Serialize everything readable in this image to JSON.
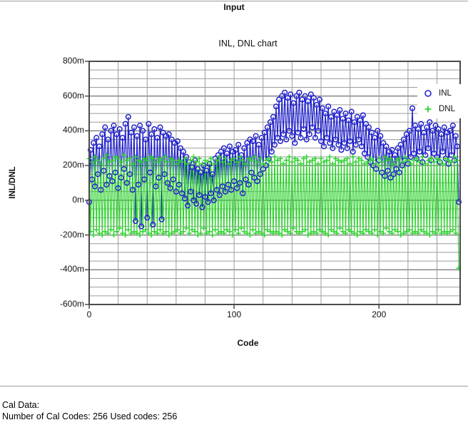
{
  "header": {
    "title": "Input"
  },
  "footer": {
    "line1": "Cal Data:",
    "line2": "Number of Cal Codes: 256 Used codes: 256"
  },
  "chart_data": {
    "type": "line",
    "title": "INL, DNL chart",
    "xlabel": "Code",
    "ylabel": "INL/DNL",
    "unit": "m",
    "xlim": [
      0,
      256
    ],
    "ylim": [
      -600,
      800
    ],
    "x_grid_interval": 20,
    "y_grid_interval": 50,
    "grid": "on",
    "legend_position": "top-right",
    "xticks": [
      {
        "v": 0,
        "label": "0"
      },
      {
        "v": 100,
        "label": "100"
      },
      {
        "v": 200,
        "label": "200"
      }
    ],
    "yticks": [
      {
        "v": 800,
        "label": "800m"
      },
      {
        "v": 600,
        "label": "600m"
      },
      {
        "v": 400,
        "label": "400m"
      },
      {
        "v": 200,
        "label": "200m"
      },
      {
        "v": 0,
        "label": "0m"
      },
      {
        "v": -200,
        "label": "-200m"
      },
      {
        "v": -400,
        "label": "-400m"
      },
      {
        "v": -600,
        "label": "-600m"
      }
    ],
    "legend": [
      {
        "label": "INL",
        "marker": "circle"
      },
      {
        "label": "DNL",
        "marker": "plus"
      }
    ],
    "colors": {
      "inl": "#2222CC",
      "dnl": "#2FD32F",
      "grid_minor": "#9c9c9c",
      "grid_major": "#7d7d7d",
      "border": "#4a4a4a"
    },
    "series": [
      {
        "name": "INL",
        "marker": "circle",
        "color": "#2222CC",
        "values": [
          -10,
          290,
          120,
          330,
          80,
          360,
          150,
          310,
          60,
          380,
          170,
          420,
          90,
          350,
          140,
          400,
          110,
          430,
          160,
          380,
          70,
          410,
          130,
          360,
          180,
          440,
          100,
          480,
          150,
          390,
          60,
          420,
          -120,
          370,
          90,
          430,
          -150,
          400,
          120,
          350,
          -100,
          440,
          160,
          380,
          -140,
          410,
          80,
          360,
          130,
          420,
          -110,
          390,
          150,
          370,
          100,
          380,
          70,
          350,
          120,
          330,
          50,
          340,
          90,
          300,
          40,
          280,
          10,
          250,
          -30,
          220,
          50,
          190,
          0,
          230,
          -20,
          180,
          30,
          160,
          -40,
          200,
          20,
          170,
          -10,
          210,
          40,
          150,
          0,
          240,
          60,
          260,
          30,
          280,
          80,
          300,
          50,
          270,
          90,
          310,
          60,
          280,
          110,
          290,
          70,
          320,
          100,
          260,
          40,
          300,
          120,
          330,
          90,
          350,
          160,
          340,
          130,
          370,
          110,
          320,
          150,
          360,
          180,
          390,
          200,
          420,
          240,
          450,
          280,
          480,
          320,
          540,
          360,
          580,
          340,
          600,
          380,
          620,
          350,
          590,
          400,
          610,
          370,
          560,
          330,
          600,
          390,
          620,
          360,
          580,
          410,
          600,
          350,
          570,
          380,
          610,
          420,
          590,
          360,
          550,
          400,
          580,
          340,
          530,
          310,
          500,
          360,
          540,
          330,
          480,
          300,
          510,
          350,
          490,
          320,
          520,
          290,
          470,
          330,
          500,
          300,
          460,
          340,
          510,
          280,
          450,
          320,
          480,
          350,
          460,
          310,
          490,
          270,
          440,
          250,
          420,
          220,
          390,
          200,
          360,
          180,
          400,
          230,
          370,
          160,
          330,
          140,
          310,
          170,
          280,
          130,
          290,
          150,
          260,
          180,
          300,
          160,
          320,
          200,
          350,
          230,
          380,
          210,
          400,
          250,
          530,
          270,
          430,
          240,
          410,
          280,
          440,
          220,
          390,
          260,
          420,
          300,
          450,
          230,
          400,
          270,
          430,
          250,
          410,
          220,
          380,
          280,
          420,
          240,
          390,
          210,
          400,
          260,
          430,
          230,
          370,
          310,
          -10
        ]
      },
      {
        "name": "DNL",
        "marker": "plus",
        "color": "#2FD32F",
        "values": [
          240,
          -180,
          220,
          -200,
          250,
          -170,
          230,
          -190,
          210,
          -200,
          240,
          -180,
          260,
          -190,
          220,
          -170,
          230,
          -200,
          250,
          -180,
          240,
          -160,
          220,
          -190,
          260,
          -200,
          230,
          -170,
          240,
          -190,
          210,
          -180,
          250,
          -190,
          230,
          -200,
          220,
          -180,
          240,
          -170,
          230,
          -190,
          250,
          -200,
          240,
          -180,
          220,
          -190,
          240,
          -170,
          230,
          -190,
          250,
          -180,
          220,
          -200,
          240,
          -190,
          230,
          -180,
          210,
          -170,
          230,
          -190,
          220,
          -180,
          240,
          -160,
          210,
          -190,
          230,
          -170,
          250,
          -180,
          220,
          -200,
          240,
          -190,
          210,
          -160,
          230,
          -190,
          220,
          -180,
          240,
          -200,
          210,
          -170,
          230,
          -190,
          250,
          -180,
          220,
          -190,
          240,
          -170,
          210,
          -180,
          230,
          -200,
          240,
          -170,
          220,
          -190,
          250,
          -160,
          230,
          -180,
          210,
          -190,
          240,
          -200,
          230,
          -170,
          250,
          -190,
          220,
          -180,
          240,
          -190,
          210,
          -200,
          230,
          -170,
          240,
          -180,
          220,
          -190,
          250,
          -180,
          230,
          -190,
          240,
          -200,
          210,
          -170,
          230,
          -180,
          250,
          -190,
          220,
          -160,
          240,
          -180,
          230,
          -190,
          210,
          -180,
          240,
          -170,
          250,
          -200,
          220,
          -190,
          230,
          -180,
          240,
          -190,
          210,
          -170,
          240,
          -180,
          220,
          -190,
          230,
          -200,
          250,
          -170,
          210,
          -180,
          240,
          -190,
          230,
          -160,
          220,
          -180,
          230,
          -190,
          240,
          -170,
          210,
          -180,
          250,
          -190,
          220,
          -200,
          240,
          -180,
          230,
          -190,
          210,
          -170,
          220,
          -180,
          240,
          -190,
          230,
          -170,
          210,
          -200,
          240,
          -180,
          220,
          -190,
          250,
          -160,
          230,
          -180,
          240,
          -190,
          210,
          -170,
          230,
          -180,
          240,
          -200,
          220,
          -190,
          250,
          -180,
          230,
          -170,
          210,
          -190,
          230,
          -180,
          240,
          -190,
          220,
          -170,
          250,
          -180,
          210,
          -190,
          230,
          -200,
          240,
          -180,
          220,
          -190,
          240,
          -170,
          230,
          -190,
          210,
          -180,
          240,
          -190,
          230,
          -180,
          220,
          -170,
          250,
          -190,
          230,
          -390
        ]
      }
    ]
  }
}
